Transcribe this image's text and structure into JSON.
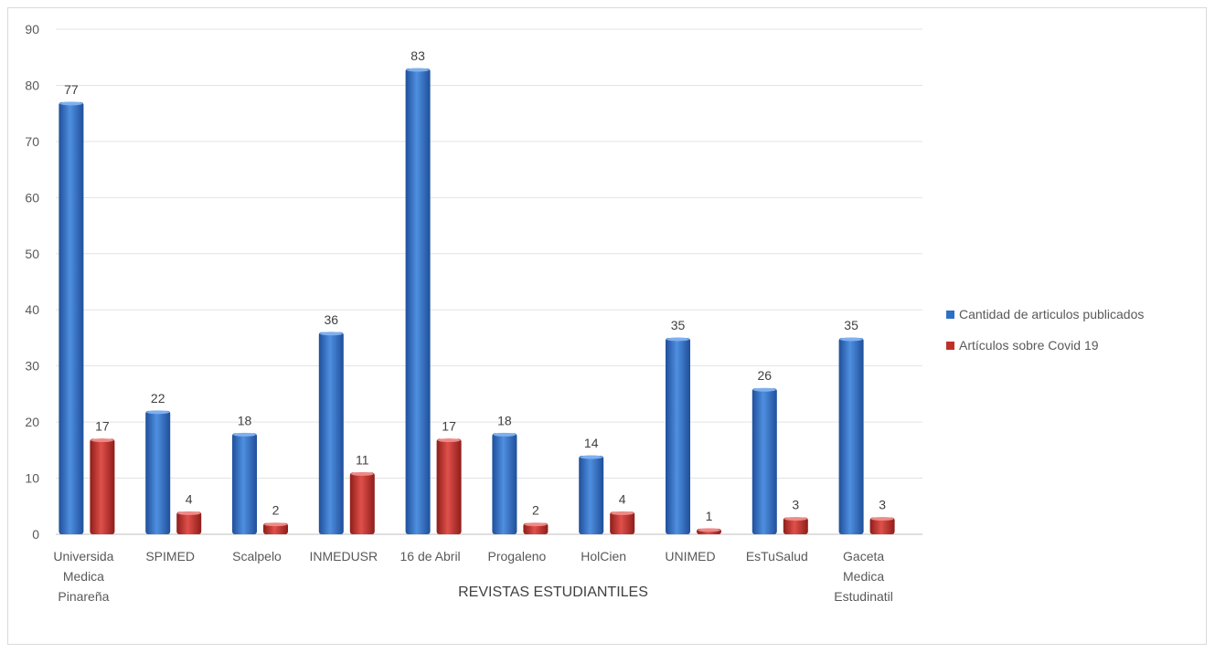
{
  "chart_data": {
    "type": "bar",
    "title": "",
    "xlabel": "REVISTAS ESTUDIANTILES",
    "ylabel": "",
    "ylim": [
      0,
      90
    ],
    "yticks": [
      0,
      10,
      20,
      30,
      40,
      50,
      60,
      70,
      80,
      90
    ],
    "grid": true,
    "legend_position": "right",
    "categories": [
      [
        "Universida",
        "Medica",
        "Pinareña"
      ],
      [
        "SPIMED"
      ],
      [
        "Scalpelo"
      ],
      [
        "INMEDUSR"
      ],
      [
        "16 de Abril"
      ],
      [
        "Progaleno"
      ],
      [
        "HolCien"
      ],
      [
        "UNIMED"
      ],
      [
        "EsTuSalud"
      ],
      [
        "Gaceta",
        "Medica",
        "Estudinatil"
      ]
    ],
    "series": [
      {
        "name": "Cantidad de articulos publicados",
        "color": "#2e6fc4",
        "values": [
          77,
          22,
          18,
          36,
          83,
          18,
          14,
          35,
          26,
          35
        ]
      },
      {
        "name": "Artículos sobre Covid 19",
        "color": "#c0302b",
        "values": [
          17,
          4,
          2,
          11,
          17,
          2,
          4,
          1,
          3,
          3
        ]
      }
    ]
  }
}
